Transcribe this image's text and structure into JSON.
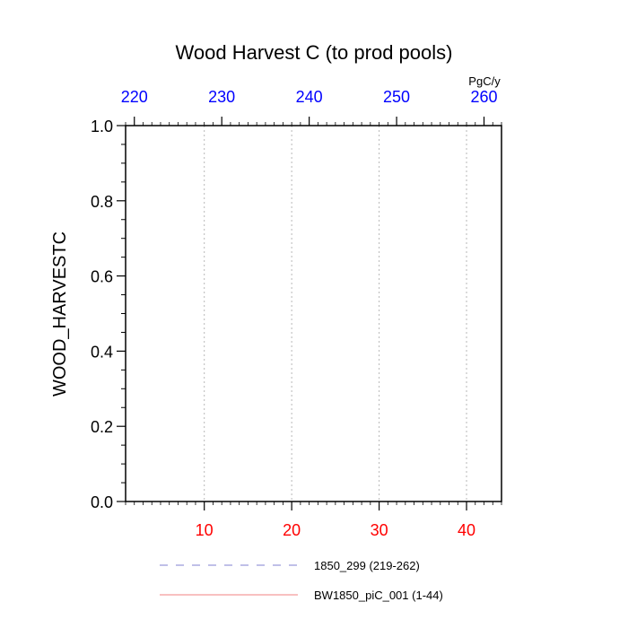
{
  "chart_data": {
    "type": "line",
    "title": "Wood Harvest C (to prod pools)",
    "ylabel": "WOOD_HARVESTC",
    "units": "PgC/y",
    "ylim": [
      0.0,
      1.0
    ],
    "yticks": [
      "0.0",
      "0.2",
      "0.4",
      "0.6",
      "0.8",
      "1.0"
    ],
    "x_bottom": {
      "range": [
        1,
        44
      ],
      "ticks": [
        "10",
        "20",
        "30",
        "40"
      ],
      "color": "#ff0000"
    },
    "x_top": {
      "range": [
        219,
        262
      ],
      "ticks": [
        "220",
        "230",
        "240",
        "250",
        "260"
      ],
      "color": "#0000ff"
    },
    "grid": "vertical-dotted",
    "legend_placement": "bottom",
    "series": [
      {
        "name": "1850_299 (219-262)",
        "color": "#8080d0",
        "dash": "dashed",
        "values": []
      },
      {
        "name": "BW1850_piC_001 (1-44)",
        "color": "#f08080",
        "dash": "solid",
        "values": []
      }
    ]
  }
}
